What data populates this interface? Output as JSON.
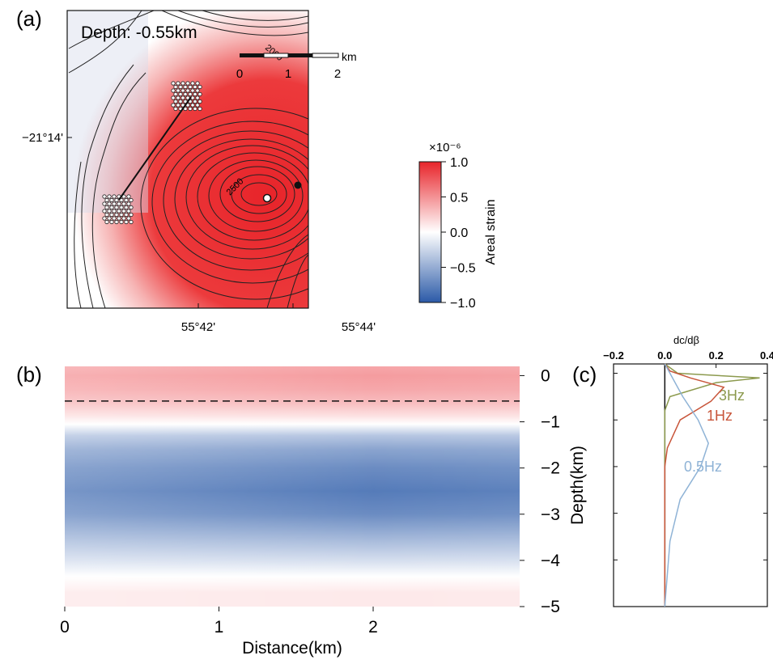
{
  "panel_labels": {
    "a": "(a)",
    "b": "(b)",
    "c": "(c)"
  },
  "panel_a": {
    "depth_label": "Depth: -0.55km",
    "lat_tick": "−21°14'",
    "lon_ticks": [
      "55°42'",
      "55°44'"
    ],
    "scalebar": {
      "ticks": [
        "0",
        "1",
        "2"
      ],
      "unit": "km"
    },
    "contour_labels": [
      "2000",
      "2500"
    ]
  },
  "colorbar": {
    "multiplier": "×10⁻⁶",
    "label": "Areal strain",
    "ticks": [
      "1.0",
      "0.5",
      "0.0",
      "−0.5",
      "−1.0"
    ],
    "colors": {
      "positive": "#e8242a",
      "zero": "#ffffff",
      "negative": "#2b5aa8"
    }
  },
  "chart_data": [
    {
      "type": "heatmap",
      "panel": "(b)",
      "xlabel": "Distance(km)",
      "ylabel": "Depth(km)",
      "xlim": [
        0,
        2.95
      ],
      "ylim": [
        -5,
        0.2
      ],
      "x_ticks": [
        "0",
        "1",
        "2"
      ],
      "y_ticks": [
        "0",
        "−1",
        "−2",
        "−3",
        "−4",
        "−5"
      ],
      "dashed_line_depth": -0.55,
      "depth_profile": [
        {
          "depth": 0.2,
          "value": 0.4
        },
        {
          "depth": 0.0,
          "value": 0.45
        },
        {
          "depth": -0.3,
          "value": 0.4
        },
        {
          "depth": -0.6,
          "value": 0.3
        },
        {
          "depth": -0.85,
          "value": 0.15
        },
        {
          "depth": -1.05,
          "value": 0.0
        },
        {
          "depth": -1.3,
          "value": -0.35
        },
        {
          "depth": -1.6,
          "value": -0.55
        },
        {
          "depth": -2.0,
          "value": -0.7
        },
        {
          "depth": -2.5,
          "value": -0.8
        },
        {
          "depth": -3.0,
          "value": -0.7
        },
        {
          "depth": -3.5,
          "value": -0.45
        },
        {
          "depth": -4.0,
          "value": -0.2
        },
        {
          "depth": -4.35,
          "value": 0.0
        },
        {
          "depth": -4.7,
          "value": 0.1
        },
        {
          "depth": -5.0,
          "value": 0.1
        }
      ],
      "distance_profile": [
        {
          "distance": 0.0,
          "scale": 0.8
        },
        {
          "distance": 1.0,
          "scale": 0.9
        },
        {
          "distance": 2.0,
          "scale": 1.0
        },
        {
          "distance": 2.95,
          "scale": 0.95
        }
      ]
    },
    {
      "type": "line",
      "panel": "(c)",
      "xlabel": "dc/dβ",
      "x_ticks": [
        "−0.2",
        "0.0",
        "0.2",
        "0.4"
      ],
      "xlim": [
        -0.2,
        0.4
      ],
      "ylim": [
        -5,
        0.2
      ],
      "series": [
        {
          "name": "3Hz",
          "color": "#8c9a4e",
          "x": [
            0.0,
            0.05,
            0.37,
            0.2,
            0.02,
            0.0,
            0.0
          ],
          "y": [
            0.2,
            0.0,
            -0.1,
            -0.2,
            -0.5,
            -0.8,
            -5.0
          ]
        },
        {
          "name": "1Hz",
          "color": "#c8553a",
          "x": [
            0.0,
            0.02,
            0.1,
            0.23,
            0.18,
            0.06,
            0.01,
            0.0,
            0.0
          ],
          "y": [
            0.2,
            0.05,
            -0.1,
            -0.3,
            -0.6,
            -1.0,
            -1.6,
            -2.0,
            -5.0
          ]
        },
        {
          "name": "0.5Hz",
          "color": "#8fb3d6",
          "x": [
            0.0,
            0.02,
            0.07,
            0.13,
            0.17,
            0.14,
            0.06,
            0.02,
            0.0
          ],
          "y": [
            0.2,
            0.0,
            -0.5,
            -1.0,
            -1.5,
            -2.0,
            -2.7,
            -3.6,
            -5.0
          ]
        }
      ]
    }
  ]
}
